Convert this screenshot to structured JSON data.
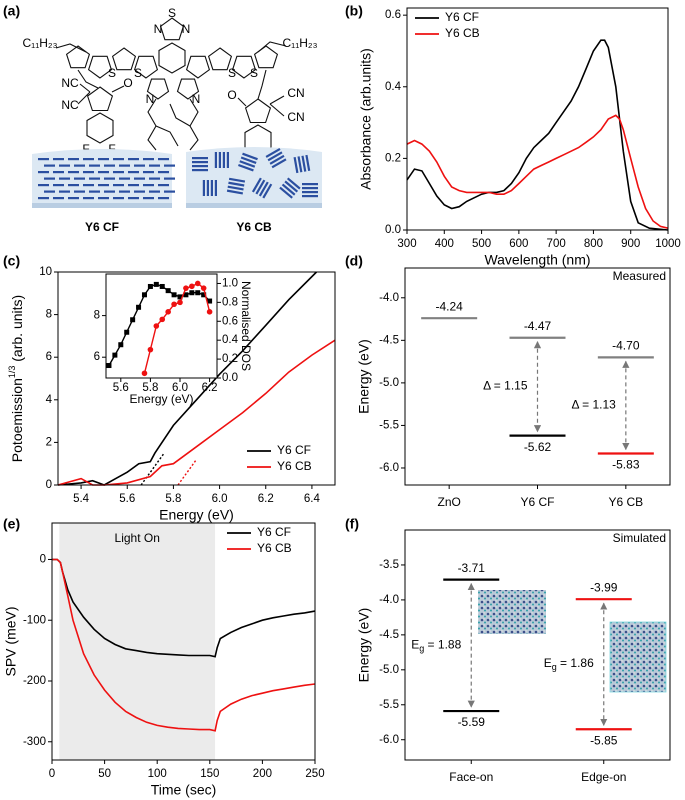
{
  "structure": {
    "panel_label": "(a)",
    "atom_labels": [
      "S",
      "N",
      "N",
      "S",
      "S",
      "N",
      "N",
      "S",
      "S",
      "C₁₁H₂₃",
      "C₁₁H₂₃",
      "NC",
      "NC",
      "O",
      "F",
      "F",
      "O",
      "CN",
      "CN",
      "F",
      "F"
    ],
    "films": [
      "Y6 CF",
      "Y6 CB"
    ]
  },
  "chart_data": [
    {
      "panel_label": "(b)",
      "type": "line",
      "xlabel": "Wavelength (nm)",
      "ylabel": "Absorbance (arb.units)",
      "xlim": [
        300,
        1000
      ],
      "xticks": [
        300,
        400,
        500,
        600,
        700,
        800,
        900,
        1000
      ],
      "ylim": [
        0,
        0.62
      ],
      "yticks": [
        {
          "value": 0,
          "label": "0.0"
        },
        0.2,
        0.4,
        0.6
      ],
      "legend": "upper left",
      "series": [
        {
          "name": "Y6 CF",
          "color": "#000000",
          "x": [
            300,
            320,
            340,
            360,
            380,
            400,
            420,
            440,
            460,
            480,
            500,
            520,
            540,
            560,
            580,
            600,
            620,
            640,
            660,
            680,
            700,
            720,
            740,
            760,
            780,
            800,
            820,
            830,
            840,
            860,
            880,
            900,
            920,
            950,
            1000
          ],
          "values": [
            0.14,
            0.17,
            0.165,
            0.13,
            0.095,
            0.07,
            0.06,
            0.065,
            0.08,
            0.09,
            0.1,
            0.105,
            0.105,
            0.11,
            0.13,
            0.16,
            0.2,
            0.23,
            0.25,
            0.27,
            0.3,
            0.33,
            0.36,
            0.4,
            0.45,
            0.5,
            0.53,
            0.53,
            0.51,
            0.4,
            0.22,
            0.08,
            0.02,
            0.005,
            0
          ]
        },
        {
          "name": "Y6 CB",
          "color": "#ee1111",
          "x": [
            300,
            320,
            340,
            360,
            380,
            400,
            420,
            440,
            460,
            480,
            500,
            520,
            540,
            560,
            580,
            600,
            620,
            640,
            660,
            680,
            700,
            720,
            740,
            760,
            780,
            800,
            820,
            840,
            860,
            870,
            880,
            900,
            920,
            940,
            960,
            980,
            1000
          ],
          "values": [
            0.24,
            0.25,
            0.24,
            0.22,
            0.19,
            0.15,
            0.12,
            0.11,
            0.105,
            0.105,
            0.105,
            0.105,
            0.1,
            0.1,
            0.11,
            0.13,
            0.15,
            0.17,
            0.18,
            0.19,
            0.2,
            0.21,
            0.22,
            0.23,
            0.245,
            0.26,
            0.28,
            0.31,
            0.32,
            0.31,
            0.28,
            0.2,
            0.12,
            0.06,
            0.025,
            0.01,
            0.005
          ]
        }
      ]
    },
    {
      "panel_label": "(c)",
      "type": "line",
      "xlabel": "Energy (eV)",
      "ylabel": [
        "Potoemission",
        "1/3",
        " (arb. units)"
      ],
      "xlim": [
        5.3,
        6.5
      ],
      "xticks": [
        5.4,
        5.6,
        5.8,
        {
          "value": 6,
          "label": "6.0"
        },
        6.2,
        6.4
      ],
      "ylim": [
        0,
        10
      ],
      "yticks": [
        0,
        2,
        4,
        6,
        8,
        10
      ],
      "legend": "lower right",
      "series": [
        {
          "name": "Y6 CF",
          "color": "#000000",
          "x": [
            5.3,
            5.4,
            5.45,
            5.5,
            5.55,
            5.6,
            5.65,
            5.7,
            5.72,
            5.8,
            5.9,
            6,
            6.1,
            6.2,
            6.3,
            6.42
          ],
          "values": [
            0,
            0.1,
            0.2,
            0,
            0.3,
            0.6,
            1,
            1.1,
            1.5,
            2.8,
            4,
            5.2,
            6.3,
            7.5,
            8.7,
            10
          ]
        },
        {
          "name": "Y6 CB",
          "color": "#ee1111",
          "x": [
            5.3,
            5.4,
            5.45,
            5.5,
            5.6,
            5.7,
            5.75,
            5.8,
            5.9,
            6,
            6.1,
            6.2,
            6.3,
            6.4,
            6.5
          ],
          "values": [
            0,
            0.3,
            0,
            0,
            0.1,
            0.4,
            0.9,
            1,
            1.8,
            2.6,
            3.4,
            4.3,
            5.3,
            6.1,
            6.8
          ]
        }
      ],
      "fit_lines": [
        {
          "color": "#000000",
          "x": [
            5.66,
            5.76
          ],
          "values": [
            0,
            1.5
          ]
        },
        {
          "color": "#ee1111",
          "x": [
            5.82,
            5.9
          ],
          "values": [
            0,
            1.2
          ]
        }
      ],
      "inset": {
        "xlabel": "Energy (eV)",
        "y2label": "Normalised DOS",
        "xlim": [
          5.5,
          6.25
        ],
        "xticks": [
          5.6,
          5.8,
          {
            "value": 6,
            "label": "6.0"
          },
          6.2
        ],
        "ylim": [
          5,
          10
        ],
        "yticks": [
          6,
          8
        ],
        "y2lim": [
          0,
          1.1
        ],
        "y2ticks": [
          {
            "value": 0,
            "label": "0.0"
          },
          0.2,
          0.4,
          0.6,
          0.8,
          {
            "value": 1,
            "label": "1.0"
          }
        ],
        "series": [
          {
            "color": "#000000",
            "marker": "square",
            "x": [
              5.52,
              5.56,
              5.6,
              5.64,
              5.68,
              5.72,
              5.76,
              5.8,
              5.84,
              5.88,
              5.92,
              5.96,
              6,
              6.04,
              6.08,
              6.12,
              6.16,
              6.2
            ],
            "values": [
              5.6,
              6.1,
              6.6,
              7.2,
              7.8,
              8.4,
              9,
              9.4,
              9.5,
              9.4,
              9.2,
              9,
              8.9,
              9,
              9.1,
              9.1,
              9,
              8.7
            ]
          },
          {
            "color": "#ee1111",
            "marker": "circle",
            "axis": "y2",
            "x": [
              5.76,
              5.8,
              5.84,
              5.88,
              5.92,
              5.96,
              6,
              6.04,
              6.08,
              6.12,
              6.16,
              6.2
            ],
            "values": [
              0.05,
              0.3,
              0.55,
              0.62,
              0.7,
              0.78,
              0.8,
              0.95,
              0.97,
              1,
              0.95,
              0.7
            ]
          }
        ]
      }
    },
    {
      "panel_label": "(d)",
      "type": "energy_levels",
      "ylabel": "Energy (eV)",
      "note": "Measured",
      "ylim": [
        -6.2,
        -3.65
      ],
      "yticks": [
        {
          "value": -4,
          "label": "-4.0"
        },
        -4.5,
        {
          "value": -5,
          "label": "-5.0"
        },
        -5.5,
        {
          "value": -6,
          "label": "-6.0"
        }
      ],
      "categories": [
        "ZnO",
        "Y6 CF",
        "Y6 CB"
      ],
      "levels": [
        [
          -4.24
        ],
        [
          -4.47,
          -5.62
        ],
        [
          -4.7,
          -5.83
        ]
      ],
      "level_colors": [
        [
          "#808080"
        ],
        [
          "#808080",
          "#000000"
        ],
        [
          "#808080",
          "#ee1111"
        ]
      ],
      "value_labels": [
        [
          "-4.24"
        ],
        [
          "-4.47",
          "-5.62"
        ],
        [
          "-4.70",
          "-5.83"
        ]
      ],
      "gap_labels": [
        null,
        [
          "Δ = 1.15"
        ],
        [
          "Δ = 1.13"
        ]
      ]
    },
    {
      "panel_label": "(e)",
      "type": "line",
      "xlabel": "Time (sec)",
      "ylabel": "SPV (meV)",
      "xlim": [
        0,
        250
      ],
      "xticks": [
        0,
        50,
        100,
        150,
        200,
        250
      ],
      "ylim": [
        -330,
        60
      ],
      "yticks": [
        0,
        -100,
        -200,
        -300
      ],
      "legend": "upper right",
      "shade": [
        7,
        155
      ],
      "shade_label": "Light On",
      "series": [
        {
          "name": "Y6 CF",
          "color": "#000000",
          "x": [
            0,
            5,
            8,
            10,
            15,
            20,
            30,
            40,
            50,
            60,
            70,
            80,
            90,
            100,
            110,
            120,
            130,
            140,
            150,
            155,
            157,
            160,
            170,
            180,
            190,
            200,
            210,
            220,
            230,
            240,
            250
          ],
          "values": [
            0,
            0,
            -5,
            -20,
            -50,
            -70,
            -95,
            -115,
            -130,
            -140,
            -147,
            -150,
            -153,
            -155,
            -156,
            -157,
            -158,
            -158,
            -158,
            -160,
            -145,
            -130,
            -120,
            -112,
            -106,
            -100,
            -96,
            -93,
            -90,
            -88,
            -85
          ]
        },
        {
          "name": "Y6 CB",
          "color": "#ee1111",
          "x": [
            0,
            5,
            8,
            10,
            15,
            20,
            30,
            40,
            50,
            60,
            70,
            80,
            90,
            100,
            110,
            120,
            130,
            140,
            150,
            155,
            157,
            160,
            170,
            180,
            190,
            200,
            210,
            220,
            230,
            240,
            250
          ],
          "values": [
            0,
            0,
            -5,
            -20,
            -60,
            -100,
            -155,
            -190,
            -215,
            -235,
            -250,
            -260,
            -268,
            -273,
            -276,
            -278,
            -279,
            -280,
            -280,
            -282,
            -265,
            -250,
            -238,
            -230,
            -224,
            -220,
            -216,
            -213,
            -210,
            -207,
            -205
          ]
        }
      ]
    },
    {
      "panel_label": "(f)",
      "type": "energy_levels",
      "ylabel": "Energy (eV)",
      "note": "Simulated",
      "ylim": [
        -6.29,
        -3.0
      ],
      "yticks": [
        -3.5,
        {
          "value": -4,
          "label": "-4.0"
        },
        -4.5,
        {
          "value": -5,
          "label": "-5.0"
        },
        -5.5,
        {
          "value": -6,
          "label": "-6.0"
        }
      ],
      "categories": [
        "Face-on",
        "Edge-on"
      ],
      "levels": [
        [
          -3.71,
          -5.59
        ],
        [
          -3.99,
          -5.85
        ]
      ],
      "level_colors": [
        [
          "#000000",
          "#000000"
        ],
        [
          "#ee1111",
          "#ee1111"
        ]
      ],
      "value_labels": [
        [
          "-3.71",
          "-5.59"
        ],
        [
          "-3.99",
          "-5.85"
        ]
      ],
      "gap_labels": [
        [
          "E",
          "g",
          " = 1.88"
        ],
        [
          "E",
          "g",
          " = 1.86"
        ]
      ]
    }
  ]
}
